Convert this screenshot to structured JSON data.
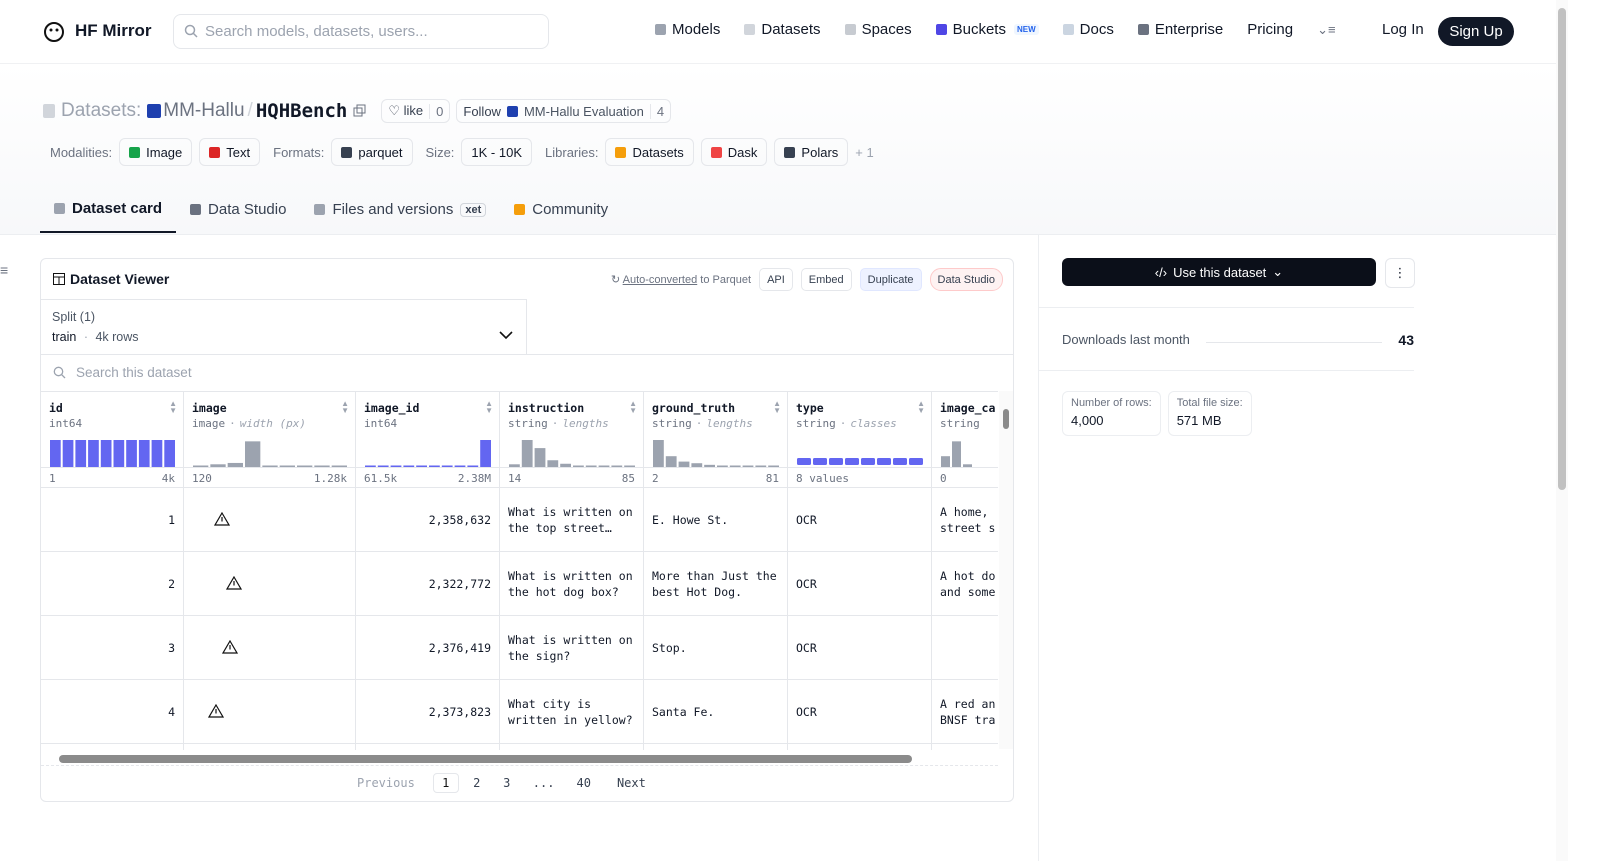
{
  "header": {
    "brand": "HF Mirror",
    "search_placeholder": "Search models, datasets, users...",
    "nav": [
      "Models",
      "Datasets",
      "Spaces",
      "Buckets",
      "Docs",
      "Enterprise",
      "Pricing"
    ],
    "new_badge": "NEW",
    "login": "Log In",
    "signup": "Sign Up"
  },
  "repo": {
    "kind": "Datasets:",
    "owner": "MM-Hallu",
    "separator": "/",
    "name": "HQHBench",
    "like_label": "like",
    "likes": 0,
    "follow_label": "Follow",
    "follow_org": "MM-Hallu Evaluation",
    "followers": 4
  },
  "tags": [
    {
      "label": "Modalities:",
      "items": [
        "Image",
        "Text"
      ]
    },
    {
      "label": "Formats:",
      "items": [
        "parquet"
      ]
    },
    {
      "label": "Size:",
      "items": [
        "1K - 10K"
      ]
    },
    {
      "label": "Libraries:",
      "items": [
        "Datasets",
        "Dask",
        "Polars"
      ]
    }
  ],
  "more_libraries": "+ 1",
  "tabs": [
    "Dataset card",
    "Data Studio",
    "Files and versions",
    "Community"
  ],
  "xet_badge": "xet",
  "viewer": {
    "title": "Dataset Viewer",
    "auto_converted": "Auto-converted",
    "to_parquet": "to Parquet",
    "buttons": [
      "API",
      "Embed",
      "Duplicate",
      "Data Studio"
    ],
    "split_label": "Split (1)",
    "split": "train",
    "dot": "·",
    "split_rows": "4k rows",
    "search_placeholder": "Search this dataset",
    "hist_ylim": [
      0,
      100
    ],
    "columns": [
      {
        "name": "id",
        "dtype": "int64",
        "color": "#6366f1",
        "hist": [
          100,
          100,
          100,
          100,
          100,
          100,
          100,
          100,
          100,
          100
        ],
        "min_label": "1",
        "max_label": "4k"
      },
      {
        "name": "image",
        "dtype": "image",
        "hint": "width (px)",
        "color": "#9ca3af",
        "hist": [
          5,
          10,
          15,
          95,
          4,
          4,
          4,
          0,
          4
        ],
        "min_label": "120",
        "max_label": "1.28k"
      },
      {
        "name": "image_id",
        "dtype": "int64",
        "color": "#6366f1",
        "hist": [
          4,
          4,
          4,
          0,
          4,
          0,
          4,
          0,
          0,
          100
        ],
        "min_label": "61.5k",
        "max_label": "2.38M"
      },
      {
        "name": "instruction",
        "dtype": "string",
        "hint": "lengths",
        "color": "#9ca3af",
        "hist": [
          10,
          100,
          70,
          25,
          12,
          5,
          5,
          5,
          5,
          5
        ],
        "min_label": "14",
        "max_label": "85"
      },
      {
        "name": "ground_truth",
        "dtype": "string",
        "hint": "lengths",
        "color": "#9ca3af",
        "hist": [
          100,
          40,
          20,
          14,
          8,
          5,
          5,
          5,
          5,
          5
        ],
        "min_label": "2",
        "max_label": "81"
      },
      {
        "name": "type",
        "dtype": "string",
        "hint": "classes",
        "color": "#6366f1",
        "class_shares": [
          12.5,
          12.5,
          12.5,
          12.5,
          12.5,
          12.5,
          12.5,
          12.5
        ],
        "min_label": "8 values"
      },
      {
        "name": "image_ca",
        "dtype": "string",
        "color": "#9ca3af",
        "hist": [
          40,
          95,
          10
        ],
        "min_label": "0"
      }
    ],
    "rows": [
      {
        "id": 1,
        "image_id": "2,358,632",
        "instruction": "What is written on the top street…",
        "ground_truth": "E. Howe St.",
        "type": "OCR",
        "image_ca": "A home, street s"
      },
      {
        "id": 2,
        "image_id": "2,322,772",
        "instruction": "What is written on the hot dog box?",
        "ground_truth": "More than Just the best Hot Dog.",
        "type": "OCR",
        "image_ca": "A hot do and some"
      },
      {
        "id": 3,
        "image_id": "2,376,419",
        "instruction": "What is written on the sign?",
        "ground_truth": "Stop.",
        "type": "OCR"
      },
      {
        "id": 4,
        "image_id": "2,373,823",
        "instruction": "What city is written in yellow?",
        "ground_truth": "Santa Fe.",
        "type": "OCR",
        "image_ca": "A red an BNSF tra"
      }
    ],
    "pagination": {
      "previous": "Previous",
      "pages": [
        1,
        2,
        3,
        "...",
        40
      ],
      "next": "Next"
    }
  },
  "sidebar": {
    "use_button": "Use this dataset",
    "downloads_label": "Downloads last month",
    "downloads": 43,
    "stats": [
      {
        "label": "Number of rows:",
        "value": "4,000"
      },
      {
        "label": "Total file size:",
        "value": "571 MB"
      }
    ]
  }
}
